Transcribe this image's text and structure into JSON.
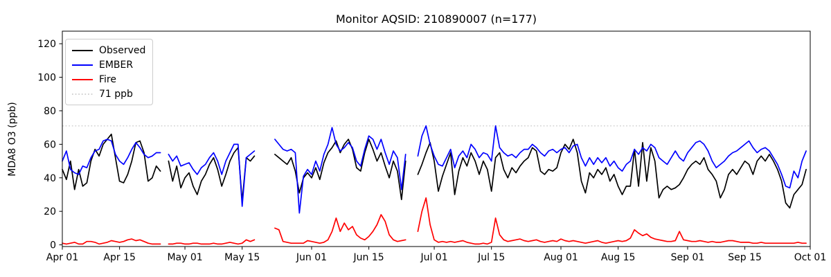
{
  "chart_data": {
    "type": "line",
    "title": "Monitor AQSID: 210890007 (n=177)",
    "ylabel": "MDA8 O3 (ppb)",
    "xlabel": "",
    "grid": false,
    "legend_position": "upper left",
    "x_unit": "days since Apr 01",
    "xlim_days": [
      0,
      183
    ],
    "ylim": [
      -1,
      127.5
    ],
    "y_ticks": [
      0,
      20,
      40,
      60,
      80,
      100,
      120
    ],
    "x_ticks": [
      {
        "day": 0,
        "label": "Apr 01"
      },
      {
        "day": 14,
        "label": "Apr 15"
      },
      {
        "day": 30,
        "label": "May 01"
      },
      {
        "day": 44,
        "label": "May 15"
      },
      {
        "day": 61,
        "label": "Jun 01"
      },
      {
        "day": 75,
        "label": "Jun 15"
      },
      {
        "day": 91,
        "label": "Jul 01"
      },
      {
        "day": 105,
        "label": "Jul 15"
      },
      {
        "day": 122,
        "label": "Aug 01"
      },
      {
        "day": 136,
        "label": "Aug 15"
      },
      {
        "day": 153,
        "label": "Sep 01"
      },
      {
        "day": 167,
        "label": "Sep 15"
      },
      {
        "day": 183,
        "label": "Oct 01"
      }
    ],
    "threshold": {
      "value": 71,
      "label": "71 ppb",
      "color": "#d3d3d3",
      "style": "dotted"
    },
    "legend": [
      {
        "label": "Observed",
        "color": "#000000",
        "dash": false
      },
      {
        "label": "EMBER",
        "color": "#0000ff",
        "dash": false
      },
      {
        "label": "Fire",
        "color": "#ff0000",
        "dash": false
      },
      {
        "label": "71 ppb",
        "color": "#d3d3d3",
        "dash": true
      }
    ],
    "series": [
      {
        "name": "Observed",
        "color": "#000000",
        "values": [
          45,
          39,
          50,
          33,
          45,
          35,
          37,
          50,
          57,
          53,
          60,
          63,
          66,
          52,
          38,
          37,
          42,
          50,
          61,
          62,
          55,
          38,
          40,
          47,
          44,
          null,
          50,
          38,
          47,
          34,
          40,
          43,
          35,
          30,
          38,
          42,
          48,
          52,
          45,
          35,
          42,
          50,
          55,
          58,
          26,
          52,
          50,
          53,
          null,
          null,
          null,
          null,
          54,
          52,
          50,
          48,
          52,
          44,
          31,
          40,
          43,
          40,
          46,
          39,
          49,
          55,
          58,
          62,
          55,
          60,
          63,
          57,
          46,
          44,
          55,
          63,
          57,
          50,
          55,
          47,
          40,
          50,
          44,
          27,
          50,
          null,
          null,
          42,
          48,
          55,
          61,
          50,
          32,
          41,
          48,
          55,
          30,
          44,
          52,
          47,
          55,
          50,
          42,
          50,
          45,
          32,
          52,
          55,
          45,
          40,
          46,
          43,
          47,
          50,
          52,
          58,
          56,
          44,
          42,
          45,
          44,
          46,
          55,
          60,
          57,
          63,
          55,
          38,
          31,
          43,
          40,
          45,
          42,
          46,
          38,
          42,
          35,
          30,
          35,
          35,
          57,
          35,
          61,
          38,
          58,
          50,
          28,
          33,
          35,
          33,
          34,
          36,
          40,
          45,
          48,
          50,
          48,
          52,
          45,
          42,
          38,
          28,
          33,
          42,
          45,
          42,
          46,
          50,
          48,
          42,
          50,
          53,
          50,
          54,
          50,
          45,
          38,
          25,
          22,
          30,
          33,
          36,
          45
        ]
      },
      {
        "name": "EMBER",
        "color": "#0000ff",
        "values": [
          50,
          56,
          45,
          43,
          42,
          47,
          46,
          52,
          56,
          57,
          62,
          63,
          62,
          54,
          50,
          48,
          52,
          57,
          61,
          58,
          54,
          52,
          53,
          55,
          55,
          null,
          54,
          50,
          53,
          47,
          48,
          49,
          45,
          42,
          46,
          48,
          52,
          55,
          50,
          42,
          50,
          55,
          60,
          60,
          23,
          52,
          54,
          56,
          null,
          null,
          null,
          null,
          63,
          60,
          57,
          56,
          57,
          55,
          19,
          41,
          45,
          42,
          50,
          44,
          54,
          60,
          70,
          60,
          56,
          58,
          61,
          58,
          50,
          47,
          57,
          65,
          63,
          57,
          63,
          55,
          48,
          56,
          52,
          33,
          54,
          null,
          null,
          53,
          65,
          71,
          60,
          53,
          48,
          47,
          52,
          57,
          46,
          53,
          56,
          52,
          60,
          57,
          52,
          55,
          54,
          50,
          71,
          58,
          55,
          53,
          54,
          52,
          55,
          57,
          57,
          60,
          58,
          55,
          53,
          56,
          57,
          55,
          57,
          58,
          55,
          59,
          60,
          52,
          47,
          52,
          48,
          52,
          49,
          52,
          47,
          50,
          46,
          44,
          48,
          50,
          57,
          54,
          58,
          56,
          60,
          58,
          52,
          50,
          48,
          52,
          56,
          52,
          50,
          55,
          58,
          61,
          62,
          60,
          56,
          50,
          46,
          48,
          50,
          53,
          55,
          56,
          58,
          60,
          62,
          58,
          55,
          57,
          58,
          56,
          52,
          48,
          42,
          35,
          34,
          44,
          40,
          50,
          56
        ]
      },
      {
        "name": "Fire",
        "color": "#ff0000",
        "values": [
          1,
          0.5,
          1,
          1.5,
          0.5,
          0.5,
          2,
          2,
          1.5,
          0.5,
          1,
          1.5,
          2.5,
          2,
          1.5,
          2,
          3,
          3.5,
          2.5,
          3,
          2,
          1,
          0.5,
          0.5,
          0.5,
          null,
          0.5,
          0.5,
          1,
          1,
          0.5,
          0.5,
          1,
          1,
          0.5,
          0.5,
          0.5,
          1,
          0.5,
          0.5,
          1,
          1.5,
          1,
          0.5,
          1,
          3,
          2,
          3,
          null,
          null,
          null,
          null,
          10,
          9,
          2,
          1.5,
          1,
          1,
          1,
          1,
          2.5,
          2,
          1.5,
          1,
          1.5,
          3,
          8,
          16,
          8,
          13,
          9,
          11,
          6,
          4,
          3,
          5,
          8,
          12,
          18,
          14,
          6,
          3,
          2,
          2.5,
          3,
          null,
          null,
          8,
          20,
          28,
          12,
          3,
          1.5,
          2,
          1.5,
          2,
          1.5,
          2,
          2.5,
          1.5,
          1,
          0.5,
          0.5,
          1,
          0.5,
          1.5,
          16,
          6,
          3,
          2,
          2.5,
          3,
          3.5,
          2.5,
          2,
          2.5,
          3,
          2,
          1.5,
          2,
          2.5,
          2,
          3.5,
          2.5,
          2,
          2.5,
          2,
          1.5,
          1,
          1.5,
          2,
          2.5,
          1.5,
          1,
          1.5,
          2,
          2.5,
          2,
          2.5,
          4,
          9,
          7,
          5.5,
          6.5,
          4.5,
          3.5,
          3,
          2.5,
          2,
          2,
          2.5,
          8,
          3,
          2.5,
          2,
          2,
          2.5,
          2,
          1.5,
          2,
          1.5,
          1.5,
          2,
          2.5,
          2.5,
          2,
          1.5,
          1.5,
          1.5,
          1,
          1,
          1.5,
          1,
          1,
          1,
          1,
          1,
          1,
          1,
          1,
          1.5,
          1,
          1
        ]
      }
    ]
  }
}
